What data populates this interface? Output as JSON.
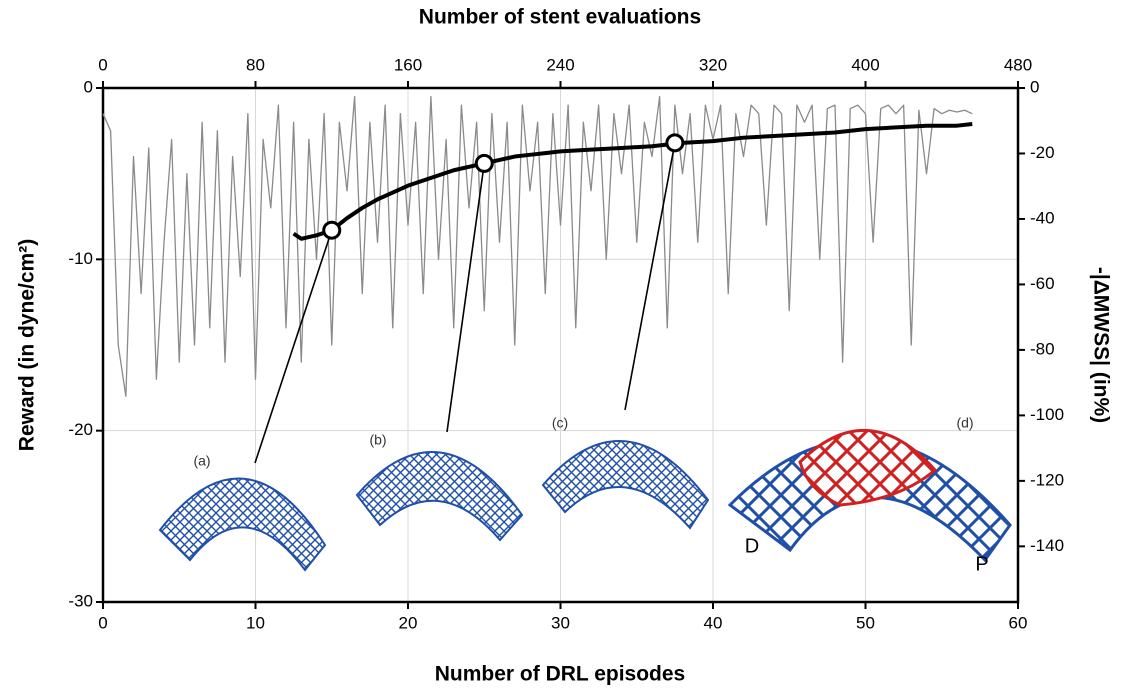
{
  "chart_data": {
    "type": "line",
    "xlabel": "Number of DRL episodes",
    "x2label": "Number of stent evaluations",
    "ylabel": "Reward (in dyne/cm²)",
    "y2label": "-|ΔMWSS| (in%)",
    "xlim": [
      0,
      60
    ],
    "xticks": [
      0,
      10,
      20,
      30,
      40,
      50,
      60
    ],
    "x2lim": [
      0,
      480
    ],
    "x2ticks": [
      0,
      80,
      160,
      240,
      320,
      400,
      480
    ],
    "ylim": [
      -30,
      0
    ],
    "yticks": [
      -30,
      -20,
      -10,
      0
    ],
    "y2lim": [
      -157,
      0
    ],
    "y2ticks": [
      -140,
      -120,
      -100,
      -80,
      -60,
      -40,
      -20,
      0
    ],
    "grid": true,
    "series": [
      {
        "color": "#8a8a8a",
        "x": [
          0,
          0.5,
          1,
          1.5,
          2,
          2.5,
          3,
          3.5,
          4,
          4.5,
          5,
          5.5,
          6,
          6.5,
          7,
          7.5,
          8,
          8.5,
          9,
          9.5,
          10,
          10.5,
          11,
          11.5,
          12,
          12.5,
          13,
          13.5,
          14,
          14.5,
          15,
          15.5,
          16,
          16.5,
          17,
          17.5,
          18,
          18.5,
          19,
          19.5,
          20,
          20.5,
          21,
          21.5,
          22,
          22.5,
          23,
          23.5,
          24,
          24.5,
          25,
          25.5,
          26,
          26.5,
          27,
          27.5,
          28,
          28.5,
          29,
          29.5,
          30,
          30.5,
          31,
          31.5,
          32,
          32.5,
          33,
          33.5,
          34,
          34.5,
          35,
          35.5,
          36,
          36.5,
          37,
          37.5,
          38,
          38.5,
          39,
          39.5,
          40,
          40.5,
          41,
          41.5,
          42,
          42.5,
          43,
          43.5,
          44,
          44.5,
          45,
          45.5,
          46,
          46.5,
          47,
          47.5,
          48,
          48.5,
          49,
          49.5,
          50,
          50.5,
          51,
          51.5,
          52,
          52.5,
          53,
          53.5,
          54,
          54.5,
          55,
          55.5,
          56,
          56.5,
          57
        ],
        "values": [
          -1.5,
          -2.5,
          -15,
          -18,
          -4,
          -12,
          -3.5,
          -17,
          -9,
          -3,
          -16,
          -5,
          -15,
          -2,
          -14,
          -2.5,
          -16,
          -4,
          -11,
          -1.5,
          -17,
          -3,
          -7,
          -1,
          -14,
          -2,
          -16,
          -3,
          -10,
          -1.5,
          -15,
          -2,
          -6,
          -0.5,
          -12,
          -2,
          -9,
          -1,
          -14,
          -1.5,
          -8,
          -2,
          -12,
          -0.5,
          -10,
          -3,
          -14,
          -1,
          -7,
          -2,
          -13,
          -1.5,
          -9,
          -2,
          -15,
          -1,
          -6,
          -2,
          -12,
          -1.5,
          -8,
          -1,
          -14,
          -2,
          -6,
          -1,
          -10,
          -1.5,
          -5,
          -1,
          -9,
          -2,
          -4,
          -0.5,
          -14,
          -1,
          -5,
          -1.5,
          -9,
          -1,
          -3,
          -1,
          -12,
          -1.5,
          -4,
          -1,
          -1.5,
          -8,
          -1,
          -1.5,
          -13,
          -1,
          -2,
          -1,
          -10,
          -1.2,
          -1,
          -16,
          -1.2,
          -1,
          -1.5,
          -9,
          -1.2,
          -1,
          -1.5,
          -1,
          -15,
          -1.3,
          -5,
          -1.2,
          -1.5,
          -1.3,
          -1.4,
          -1.3,
          -1.5
        ]
      },
      {
        "color": "#000000",
        "x": [
          12.5,
          13,
          14,
          15,
          16,
          17,
          18,
          19,
          20,
          21,
          22,
          23,
          24,
          25,
          26,
          27,
          28,
          29,
          30,
          32,
          34,
          36,
          38,
          40,
          42,
          44,
          46,
          48,
          50,
          52,
          54,
          56,
          57
        ],
        "values": [
          -8.5,
          -8.8,
          -8.6,
          -8.3,
          -7.6,
          -7.0,
          -6.5,
          -6.1,
          -5.7,
          -5.4,
          -5.1,
          -4.8,
          -4.6,
          -4.4,
          -4.2,
          -4.0,
          -3.9,
          -3.8,
          -3.7,
          -3.6,
          -3.5,
          -3.4,
          -3.2,
          -3.1,
          -2.9,
          -2.8,
          -2.7,
          -2.6,
          -2.4,
          -2.3,
          -2.2,
          -2.2,
          -2.1
        ]
      }
    ],
    "highlight_points": {
      "x": [
        15,
        25,
        37.5
      ],
      "values": [
        -8.3,
        -4.4,
        -3.2
      ]
    },
    "annotations": [
      "(a)",
      "(b)",
      "(c)",
      "(d)",
      "D",
      "P"
    ]
  }
}
